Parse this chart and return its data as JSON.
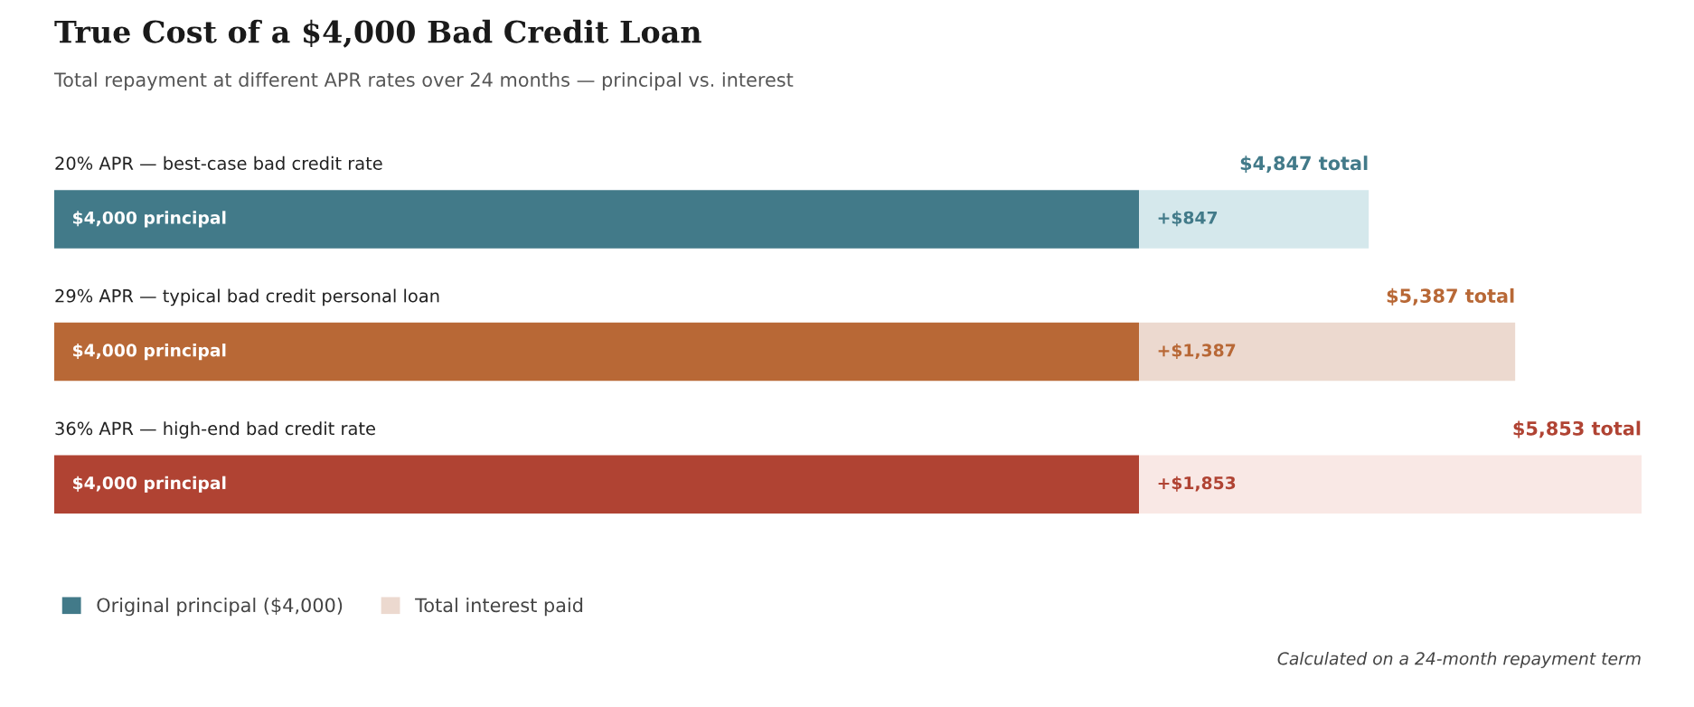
{
  "chart_data": {
    "type": "bar",
    "orientation": "horizontal",
    "stacked": true,
    "title": "True Cost of a $4,000 Bad Credit Loan",
    "subtitle": "Total repayment at different APR rates over 24 months — principal vs. interest",
    "categories": [
      "20% APR — best-case bad credit rate",
      "29% APR — typical bad credit personal loan",
      "36% APR — high-end bad credit rate"
    ],
    "series": [
      {
        "name": "Original principal ($4,000)",
        "color": "#427a89",
        "colors": [
          "#427a89",
          "#b86836",
          "#b04333"
        ],
        "values": [
          4000,
          4000,
          4000
        ],
        "value_labels": [
          "$4,000 principal",
          "$4,000 principal",
          "$4,000 principal"
        ]
      },
      {
        "name": "Total interest paid",
        "color": "#ecd9cf",
        "colors": [
          "#d5e8ec",
          "#ecd9cf",
          "#f9e8e5"
        ],
        "values": [
          847,
          1387,
          1853
        ],
        "value_labels": [
          "+$847",
          "+$1,387",
          "+$1,853"
        ]
      }
    ],
    "totals": [
      "$4,847 total",
      "$5,387 total",
      "$5,853 total"
    ],
    "legend": "bottom left",
    "annotations": [
      "Calculated on a 24-month repayment term"
    ]
  }
}
